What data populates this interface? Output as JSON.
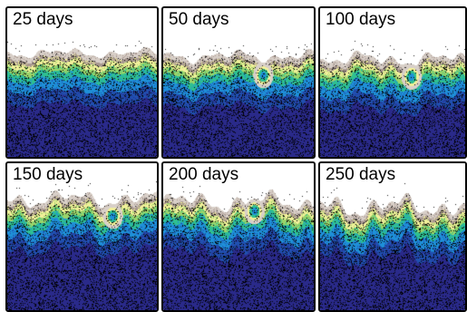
{
  "panels": [
    {
      "label": "25 days",
      "has_hotspot": false,
      "front_depth": 0.36,
      "roughness": 0.35
    },
    {
      "label": "50 days",
      "has_hotspot": true,
      "front_depth": 0.38,
      "roughness": 0.45
    },
    {
      "label": "100 days",
      "has_hotspot": true,
      "front_depth": 0.4,
      "roughness": 0.55
    },
    {
      "label": "150 days",
      "has_hotspot": true,
      "front_depth": 0.3,
      "roughness": 0.65
    },
    {
      "label": "200 days",
      "has_hotspot": true,
      "front_depth": 0.32,
      "roughness": 0.75
    },
    {
      "label": "250 days",
      "has_hotspot": false,
      "front_depth": 0.35,
      "roughness": 0.85
    }
  ],
  "colormap": [
    "#ffffff",
    "#d8cfc8",
    "#a89890",
    "#f2f09a",
    "#9ad46a",
    "#2fc090",
    "#1e90d8",
    "#2050b0",
    "#2a2a8a"
  ]
}
